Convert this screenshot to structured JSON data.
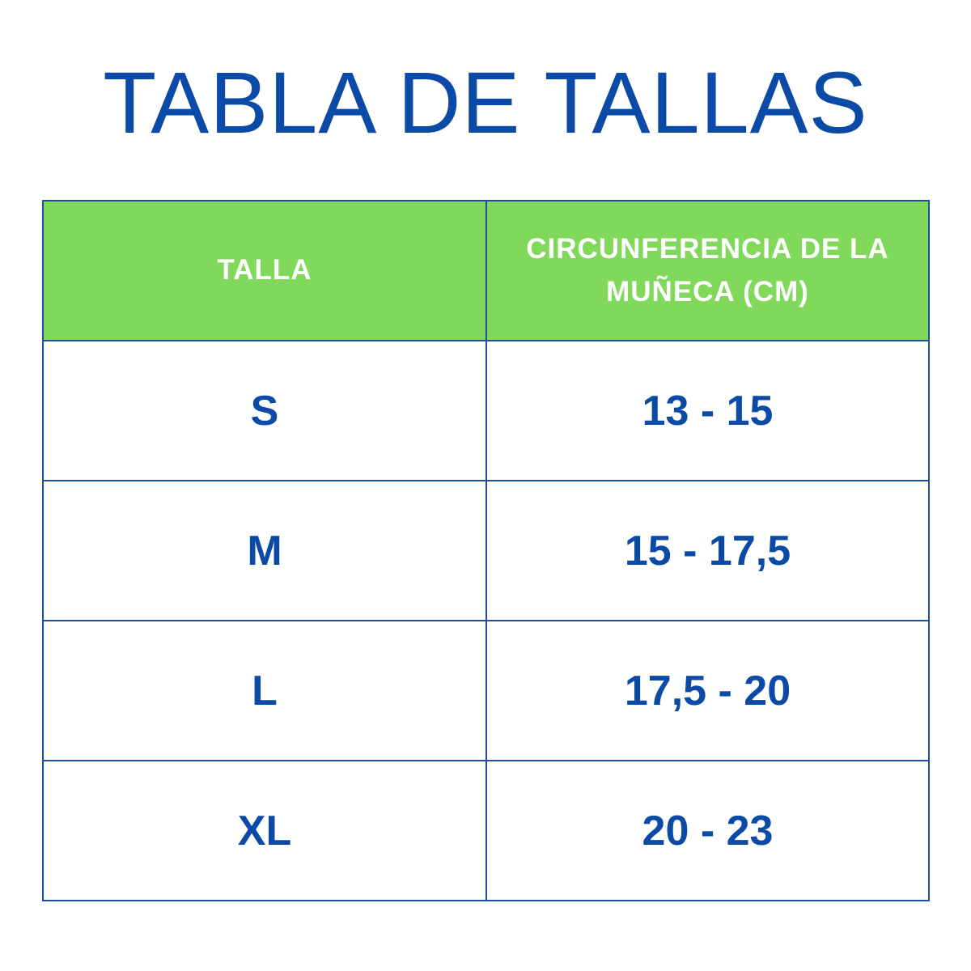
{
  "title": "TABLA DE TALLAS",
  "colors": {
    "title": "#0b4aa6",
    "header_bg": "#80d95a",
    "header_text": "#ffffff",
    "border": "#1f4f9e",
    "cell_text": "#0b4aa6"
  },
  "table": {
    "headers": [
      "TALLA",
      "CIRCUNFERENCIA DE LA MUÑECA (CM)"
    ],
    "rows": [
      {
        "size": "S",
        "range": "13 - 15"
      },
      {
        "size": "M",
        "range": "15 - 17,5"
      },
      {
        "size": "L",
        "range": "17,5 - 20"
      },
      {
        "size": "XL",
        "range": "20 - 23"
      }
    ]
  }
}
